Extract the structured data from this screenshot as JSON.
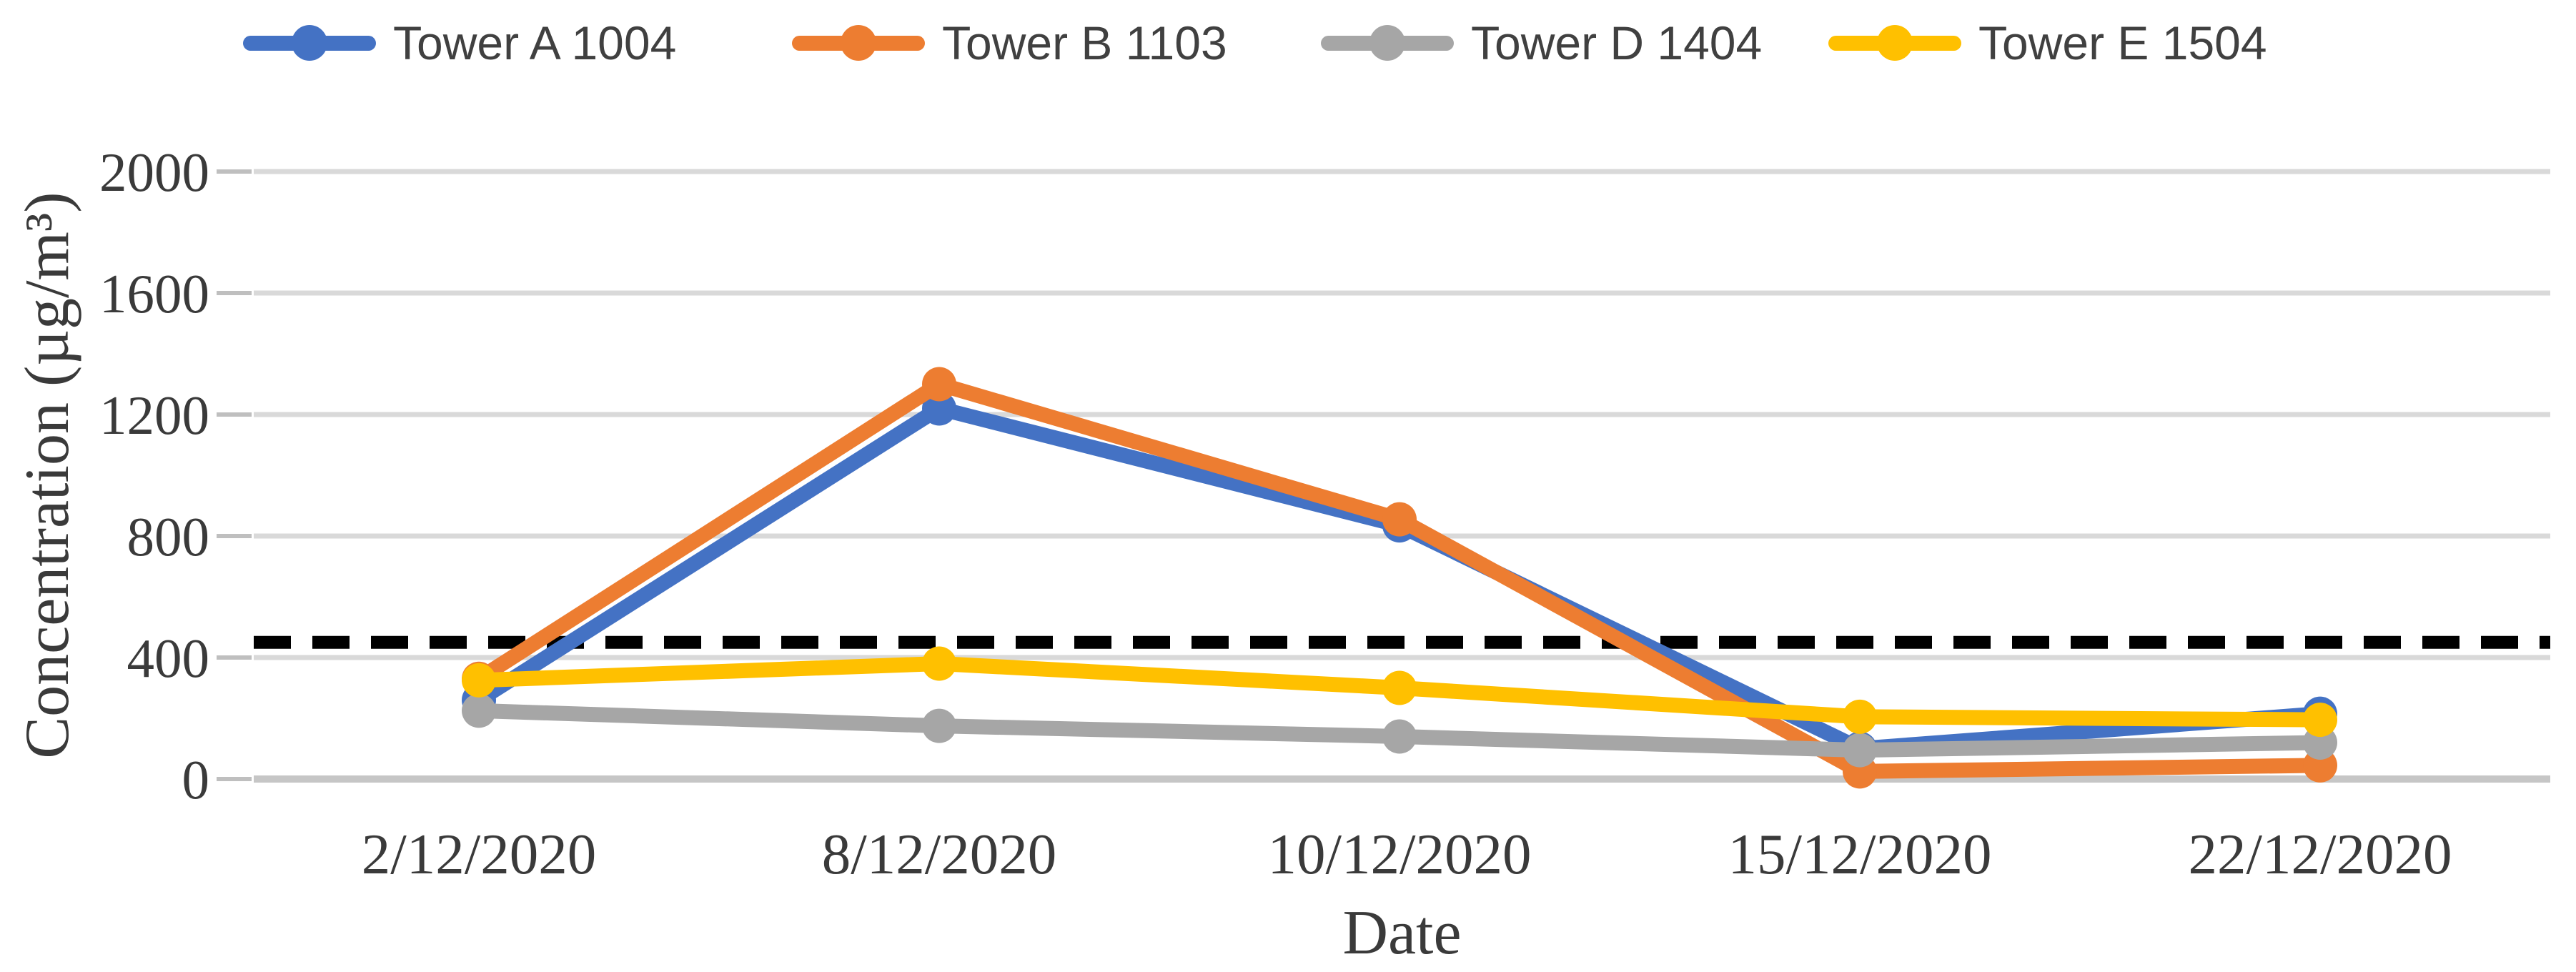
{
  "chart_data": {
    "type": "line",
    "title": "",
    "categories": [
      "2/12/2020",
      "8/12/2020",
      "10/12/2020",
      "15/12/2020",
      "22/12/2020"
    ],
    "series": [
      {
        "name": "Tower A 1004",
        "color": "#4472C4",
        "values": [
          260,
          1220,
          835,
          100,
          215
        ]
      },
      {
        "name": "Tower B 1103",
        "color": "#ED7D31",
        "values": [
          330,
          1300,
          855,
          25,
          45
        ]
      },
      {
        "name": "Tower D 1404",
        "color": "#A6A6A6",
        "values": [
          225,
          175,
          140,
          95,
          120
        ]
      },
      {
        "name": "Tower E 1504",
        "color": "#FFC000",
        "values": [
          325,
          380,
          300,
          205,
          195
        ]
      }
    ],
    "threshold_line": {
      "value": 450,
      "style": "dashed",
      "color": "#000000"
    },
    "x_axis": {
      "label": "Date"
    },
    "y_axis": {
      "label": "Concentration (µg/m³)",
      "min": 0,
      "max": 2000,
      "tick_step": 400,
      "ticks": [
        0,
        400,
        800,
        1200,
        1600,
        2000
      ]
    },
    "grid": "horizontal",
    "legend_position": "top",
    "colors": {
      "gridline": "#D9D9D9",
      "axis_line": "#C6C6C6",
      "tick_mark": "#BFBFBF",
      "text": "#3A3A3A"
    }
  }
}
